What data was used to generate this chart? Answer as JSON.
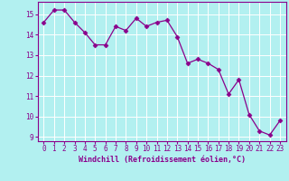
{
  "x": [
    0,
    1,
    2,
    3,
    4,
    5,
    6,
    7,
    8,
    9,
    10,
    11,
    12,
    13,
    14,
    15,
    16,
    17,
    18,
    19,
    20,
    21,
    22,
    23
  ],
  "y": [
    14.6,
    15.2,
    15.2,
    14.6,
    14.1,
    13.5,
    13.5,
    14.4,
    14.2,
    14.8,
    14.4,
    14.6,
    14.7,
    13.9,
    12.6,
    12.8,
    12.6,
    12.3,
    11.1,
    11.8,
    10.1,
    9.3,
    9.1,
    9.8
  ],
  "line_color": "#8b008b",
  "marker": "D",
  "marker_size": 2.5,
  "bg_color": "#b2f0f0",
  "grid_color": "#ffffff",
  "xlabel": "Windchill (Refroidissement éolien,°C)",
  "xlabel_color": "#8b008b",
  "tick_color": "#8b008b",
  "ylim": [
    8.8,
    15.6
  ],
  "yticks": [
    9,
    10,
    11,
    12,
    13,
    14,
    15
  ],
  "xticks": [
    0,
    1,
    2,
    3,
    4,
    5,
    6,
    7,
    8,
    9,
    10,
    11,
    12,
    13,
    14,
    15,
    16,
    17,
    18,
    19,
    20,
    21,
    22,
    23
  ],
  "spine_color": "#8b008b",
  "label_fontsize": 6.0,
  "tick_fontsize": 5.5
}
